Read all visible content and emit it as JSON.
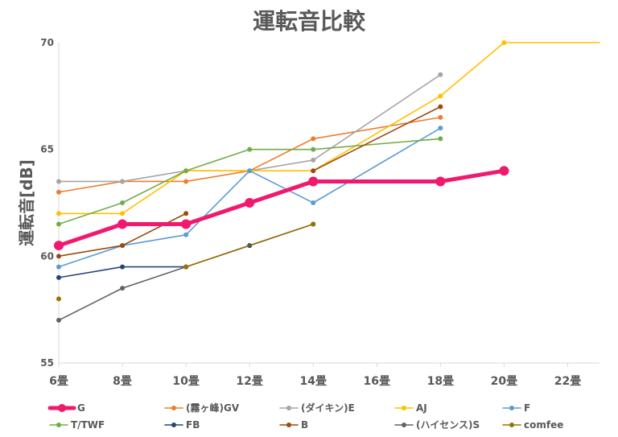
{
  "chart_data": {
    "type": "line",
    "title": "運転音比較",
    "ylabel": "運転音[dB]",
    "xlabel": "",
    "categories": [
      "6畳",
      "8畳",
      "10畳",
      "12畳",
      "14畳",
      "16畳",
      "18畳",
      "20畳",
      "22畳"
    ],
    "x_values": [
      6,
      8,
      10,
      12,
      14,
      16,
      18,
      20,
      22
    ],
    "xlim": [
      6,
      23
    ],
    "ylim": [
      55,
      70
    ],
    "yticks": [
      55,
      60,
      65,
      70
    ],
    "grid": false,
    "legend_position": "bottom",
    "series": [
      {
        "name": "G",
        "color": "#f0196e",
        "highlight": true,
        "points": [
          [
            6,
            60.5
          ],
          [
            8,
            61.5
          ],
          [
            10,
            61.5
          ],
          [
            12,
            62.5
          ],
          [
            14,
            63.5
          ],
          [
            18,
            63.5
          ],
          [
            20,
            64
          ]
        ]
      },
      {
        "name": "(霧ヶ峰)GV",
        "color": "#ed7d31",
        "points": [
          [
            6,
            63
          ],
          [
            8,
            63.5
          ],
          [
            10,
            63.5
          ],
          [
            12,
            64
          ],
          [
            14,
            65.5
          ],
          [
            18,
            66.5
          ]
        ]
      },
      {
        "name": "(ダイキン)E",
        "color": "#a5a5a5",
        "points": [
          [
            6,
            63.5
          ],
          [
            8,
            63.5
          ],
          [
            10,
            64
          ],
          [
            12,
            64
          ],
          [
            14,
            64.5
          ],
          [
            18,
            68.5
          ]
        ]
      },
      {
        "name": "AJ",
        "color": "#ffc000",
        "points": [
          [
            6,
            62
          ],
          [
            8,
            62
          ],
          [
            10,
            64
          ],
          [
            12,
            64
          ],
          [
            14,
            64
          ],
          [
            18,
            67.5
          ],
          [
            20,
            70
          ],
          [
            23,
            70
          ]
        ]
      },
      {
        "name": "F",
        "color": "#5b9bd5",
        "points": [
          [
            6,
            59.5
          ],
          [
            8,
            60.5
          ],
          [
            10,
            61
          ],
          [
            12,
            64
          ],
          [
            14,
            62.5
          ],
          [
            18,
            66
          ]
        ]
      },
      {
        "name": "T/TWF",
        "color": "#70ad47",
        "points": [
          [
            6,
            61.5
          ],
          [
            8,
            62.5
          ],
          [
            10,
            64
          ],
          [
            12,
            65
          ],
          [
            14,
            65
          ],
          [
            18,
            65.5
          ]
        ]
      },
      {
        "name": "FB",
        "color": "#264478",
        "points": [
          [
            6,
            59
          ],
          [
            8,
            59.5
          ],
          [
            10,
            59.5
          ],
          [
            12,
            60.5
          ],
          [
            14,
            61.5
          ]
        ]
      },
      {
        "name": "B",
        "color": "#9e480e",
        "points": [
          [
            6,
            60
          ],
          [
            8,
            60.5
          ],
          [
            10,
            62
          ],
          [
            14,
            64
          ],
          [
            18,
            67
          ]
        ],
        "breaks": [
          [
            10,
            14
          ]
        ]
      },
      {
        "name": "(ハイセンス)S",
        "color": "#636363",
        "points": [
          [
            6,
            57
          ],
          [
            8,
            58.5
          ],
          [
            10,
            59.5
          ]
        ]
      },
      {
        "name": "comfee",
        "color": "#997300",
        "points": [
          [
            6,
            58
          ],
          [
            10,
            59.5
          ],
          [
            14,
            61.5
          ]
        ],
        "breaks": [
          [
            6,
            10
          ]
        ]
      }
    ]
  }
}
